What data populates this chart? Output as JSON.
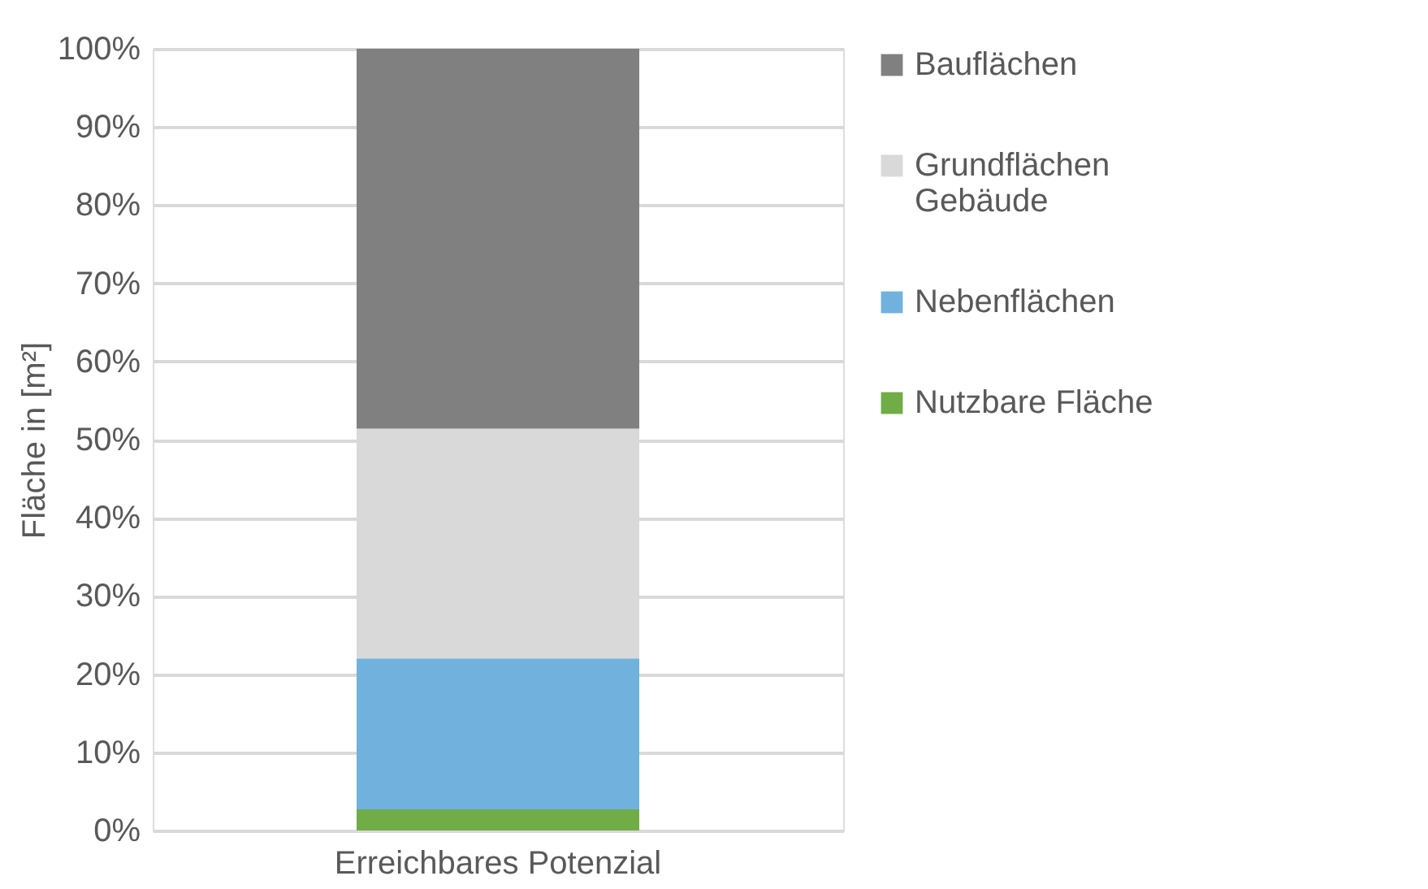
{
  "chart_data": {
    "type": "bar",
    "stacked": true,
    "ylabel": "Fläche in [m²]",
    "categories": [
      "Erreichbares Potenzial"
    ],
    "series": [
      {
        "name": "Nutzbare Fläche",
        "color": "#70ad47",
        "values": [
          2.7
        ]
      },
      {
        "name": "Nebenflächen",
        "color": "#70b2dd",
        "values": [
          19.3
        ]
      },
      {
        "name": "Grundflächen Gebäude",
        "color": "#d9d9d9",
        "values": [
          29.4
        ]
      },
      {
        "name": "Bauflächen",
        "color": "#808080",
        "values": [
          48.6
        ]
      }
    ],
    "ylim": [
      0,
      100
    ],
    "yticks": [
      {
        "value": 0,
        "label": "0%"
      },
      {
        "value": 10,
        "label": "10%"
      },
      {
        "value": 20,
        "label": "20%"
      },
      {
        "value": 30,
        "label": "30%"
      },
      {
        "value": 40,
        "label": "40%"
      },
      {
        "value": 50,
        "label": "50%"
      },
      {
        "value": 60,
        "label": "60%"
      },
      {
        "value": 70,
        "label": "70%"
      },
      {
        "value": 80,
        "label": "80%"
      },
      {
        "value": 90,
        "label": "90%"
      },
      {
        "value": 100,
        "label": "100%"
      }
    ],
    "grid": "y",
    "legend": "right"
  }
}
